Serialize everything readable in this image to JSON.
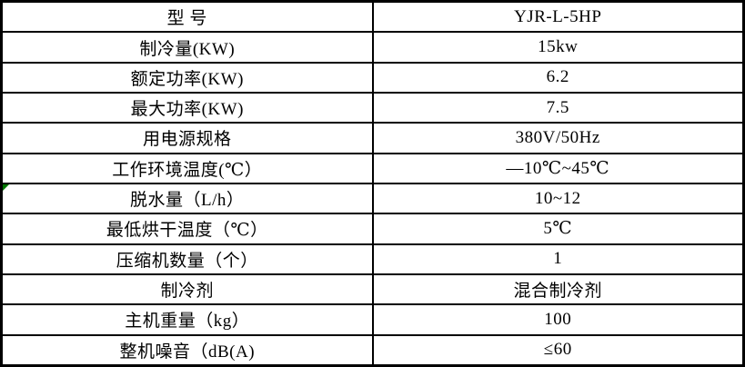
{
  "table": {
    "title": "product-specification-table",
    "columns": [
      {
        "key": "label",
        "name": "parameter"
      },
      {
        "key": "value",
        "name": "value"
      }
    ],
    "rows": [
      {
        "label": "型 号",
        "value": "YJR-L-5HP",
        "marker": false
      },
      {
        "label": "制冷量(KW)",
        "value": "15kw",
        "marker": false
      },
      {
        "label": "额定功率(KW)",
        "value": "6.2",
        "marker": false
      },
      {
        "label": "最大功率(KW)",
        "value": "7.5",
        "marker": false
      },
      {
        "label": "用电源规格",
        "value": "380V/50Hz",
        "marker": false
      },
      {
        "label": "工作环境温度(℃）",
        "value": "—10℃~45℃",
        "marker": false
      },
      {
        "label": "脱水量（L/h）",
        "value": "10~12",
        "marker": true
      },
      {
        "label": "最低烘干温度（℃）",
        "value": "5℃",
        "marker": false
      },
      {
        "label": "压缩机数量（个）",
        "value": "1",
        "marker": false
      },
      {
        "label": "制冷剂",
        "value": "混合制冷剂",
        "marker": false
      },
      {
        "label": "主机重量（kg）",
        "value": "100",
        "marker": false
      },
      {
        "label": "整机噪音（dB(A)",
        "value": "≤60",
        "marker": false
      }
    ],
    "colors": {
      "border": "#000000",
      "background": "#ffffff",
      "text": "#000000",
      "marker": "#007700"
    }
  }
}
